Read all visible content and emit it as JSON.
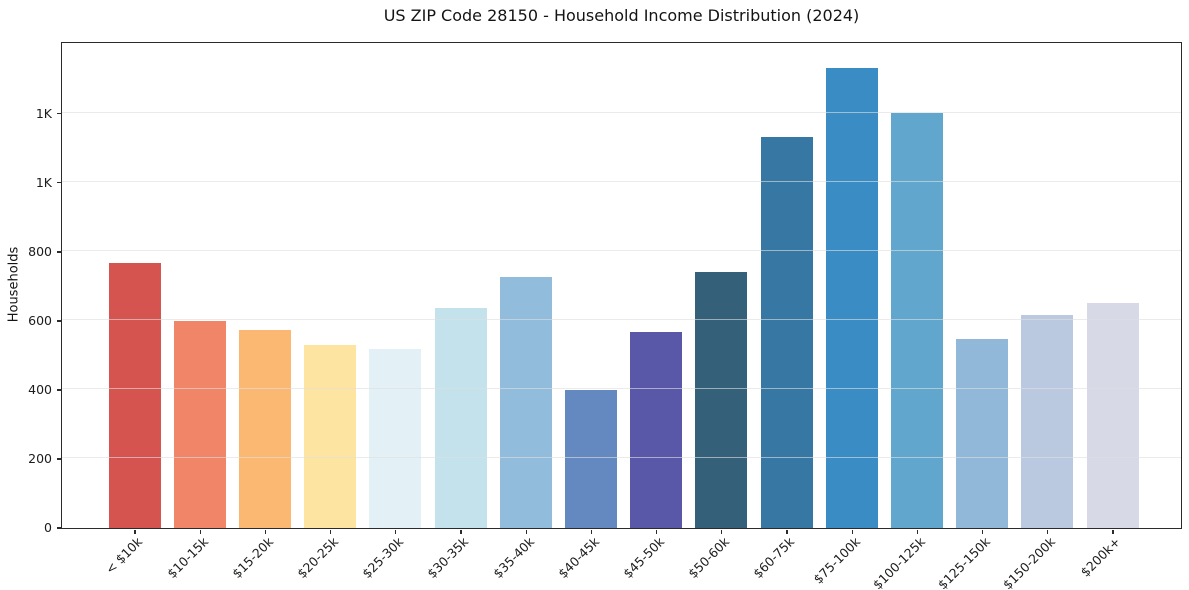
{
  "chart_data": {
    "type": "bar",
    "title": "US ZIP Code 28150 - Household Income Distribution (2024)",
    "xlabel": "",
    "ylabel": "Households",
    "categories": [
      "< $10k",
      "$10-15k",
      "$15-20k",
      "$20-25k",
      "$25-30k",
      "$30-35k",
      "$35-40k",
      "$40-45k",
      "$45-50k",
      "$50-60k",
      "$60-75k",
      "$75-100k",
      "$100-125k",
      "$125-150k",
      "$150-200k",
      "$200k+"
    ],
    "values": [
      766,
      598,
      571,
      530,
      517,
      636,
      726,
      399,
      566,
      740,
      1130,
      1332,
      1200,
      546,
      616,
      651
    ],
    "bar_colors": [
      "#d6544f",
      "#f08567",
      "#fab873",
      "#fde4a1",
      "#e3f1f6",
      "#c3e2ec",
      "#92bcdb",
      "#6488c0",
      "#5957a8",
      "#34607a",
      "#3678a3",
      "#398cc4",
      "#60a6cd",
      "#92b8d9",
      "#bac8e0",
      "#d7d9e7"
    ],
    "ylim": [
      0,
      1405
    ],
    "ytick_values": [
      0,
      200,
      400,
      600,
      800,
      1000,
      1200
    ],
    "ytick_labels": [
      "0",
      "200",
      "400",
      "600",
      "800",
      "1K",
      "1K"
    ],
    "xtick_rotation": 45,
    "grid": "horizontal",
    "legend_position": "none",
    "colors": {
      "background": "#ffffff",
      "spine": "#2b2b2b",
      "grid": "#dedede",
      "text": "#1c1c1c"
    }
  }
}
